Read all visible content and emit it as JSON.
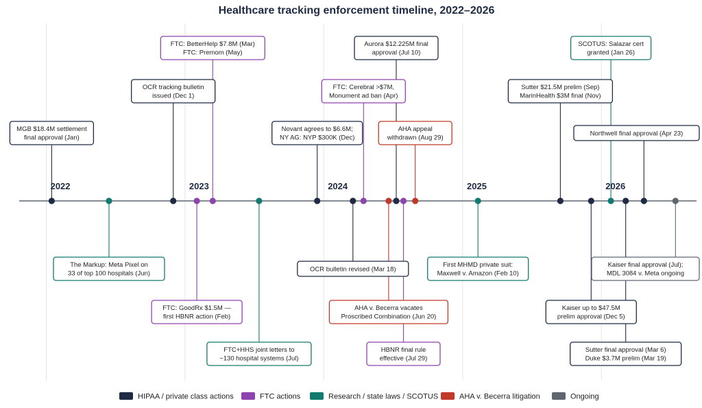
{
  "chart_data": {
    "type": "timeline",
    "title": "Healthcare tracking enforcement timeline, 2022–2026",
    "x_range": [
      "2021-09-01",
      "2026-09-30"
    ],
    "year_ticks": [
      "2022",
      "2023",
      "2024",
      "2025",
      "2026"
    ],
    "categories": [
      {
        "key": "hipaa",
        "name": "HIPAA / private class actions",
        "color": "#1f2a44"
      },
      {
        "key": "ftc",
        "name": "FTC actions",
        "color": "#8e44ad"
      },
      {
        "key": "research",
        "name": "Research / state laws / SCOTUS",
        "color": "#137a70"
      },
      {
        "key": "aha",
        "name": "AHA v. Becerra litigation",
        "color": "#c0392b"
      },
      {
        "key": "ongoing",
        "name": "Ongoing",
        "color": "#5f6670"
      }
    ],
    "events": [
      {
        "date": "2022-01-15",
        "category": "hipaa",
        "side": "above",
        "level": 4,
        "lines": [
          "MGB $18.4M settlement",
          "final approval (Jan)"
        ]
      },
      {
        "date": "2022-06-15",
        "category": "research",
        "side": "below",
        "level": 1,
        "lines": [
          "The Markup: Meta Pixel on",
          "33 of top 100 hospitals (Jun)"
        ]
      },
      {
        "date": "2022-12-01",
        "category": "hipaa",
        "side": "above",
        "level": 5,
        "lines": [
          "OCR tracking bulletin",
          "issued (Dec 1)"
        ]
      },
      {
        "date": "2023-02-01",
        "category": "ftc",
        "side": "below",
        "level": 2,
        "lines": [
          "FTC: GoodRx $1.5M —",
          "first HBNR action (Feb)"
        ]
      },
      {
        "date": "2023-03-15",
        "category": "ftc",
        "side": "above",
        "level": 6,
        "lines": [
          "FTC: BetterHelp $7.8M (Mar)",
          "FTC: Premom (May)"
        ]
      },
      {
        "date": "2023-07-15",
        "category": "research",
        "side": "below",
        "level": 3,
        "lines": [
          "FTC+HHS joint letters to",
          "~130 hospital systems (Jul)"
        ]
      },
      {
        "date": "2023-12-15",
        "category": "hipaa",
        "side": "above",
        "level": 4,
        "lines": [
          "Novant agrees to $6.6M;",
          "NY AG: NYP $300K (Dec)"
        ]
      },
      {
        "date": "2024-03-18",
        "category": "hipaa",
        "side": "below",
        "level": 1,
        "lines": [
          "OCR bulletin revised (Mar 18)"
        ]
      },
      {
        "date": "2024-04-15",
        "category": "ftc",
        "side": "above",
        "level": 5,
        "lines": [
          "FTC: Cerebral >$7M,",
          "Monument ad ban (Apr)"
        ]
      },
      {
        "date": "2024-06-20",
        "category": "aha",
        "side": "below",
        "level": 2,
        "lines": [
          "AHA v. Becerra vacates",
          "Proscribed Combination (Jun 20)"
        ]
      },
      {
        "date": "2024-07-10",
        "category": "hipaa",
        "side": "above",
        "level": 6,
        "lines": [
          "Aurora $12.225M final",
          "approval (Jul 10)"
        ]
      },
      {
        "date": "2024-07-29",
        "category": "ftc",
        "side": "below",
        "level": 3,
        "lines": [
          "HBNR final rule",
          "effective (Jul 29)"
        ]
      },
      {
        "date": "2024-08-29",
        "category": "aha",
        "side": "above",
        "level": 4,
        "lines": [
          "AHA appeal",
          "withdrawn (Aug 29)"
        ]
      },
      {
        "date": "2025-02-10",
        "category": "research",
        "side": "below",
        "level": 1,
        "lines": [
          "First MHMD private suit:",
          "Maxwell v. Amazon (Feb 10)"
        ]
      },
      {
        "date": "2025-09-15",
        "category": "hipaa",
        "side": "above",
        "level": 5,
        "lines": [
          "Sutter $21.5M prelim (Sep)",
          "MarinHealth $3M final (Nov)"
        ]
      },
      {
        "date": "2025-12-05",
        "category": "hipaa",
        "side": "below",
        "level": 2,
        "lines": [
          "Kaiser up to $47.5M",
          "prelim approval (Dec 5)"
        ]
      },
      {
        "date": "2026-01-26",
        "category": "research",
        "side": "above",
        "level": 6,
        "lines": [
          "SCOTUS: Salazar cert",
          "granted (Jan 26)"
        ]
      },
      {
        "date": "2026-03-06",
        "category": "hipaa",
        "side": "below",
        "level": 3,
        "lines": [
          "Sutter final approval (Mar 6)",
          "Duke $3.7M prelim (Mar 19)"
        ]
      },
      {
        "date": "2026-04-23",
        "category": "hipaa",
        "side": "above",
        "level": 4,
        "lines": [
          "Northwell final approval (Apr 23)"
        ]
      },
      {
        "date": "2026-07-15",
        "category": "ongoing",
        "side": "below",
        "level": 1,
        "lines": [
          "Kaiser final approval (Jul);",
          "MDL 3084 v. Meta ongoing"
        ]
      }
    ]
  }
}
